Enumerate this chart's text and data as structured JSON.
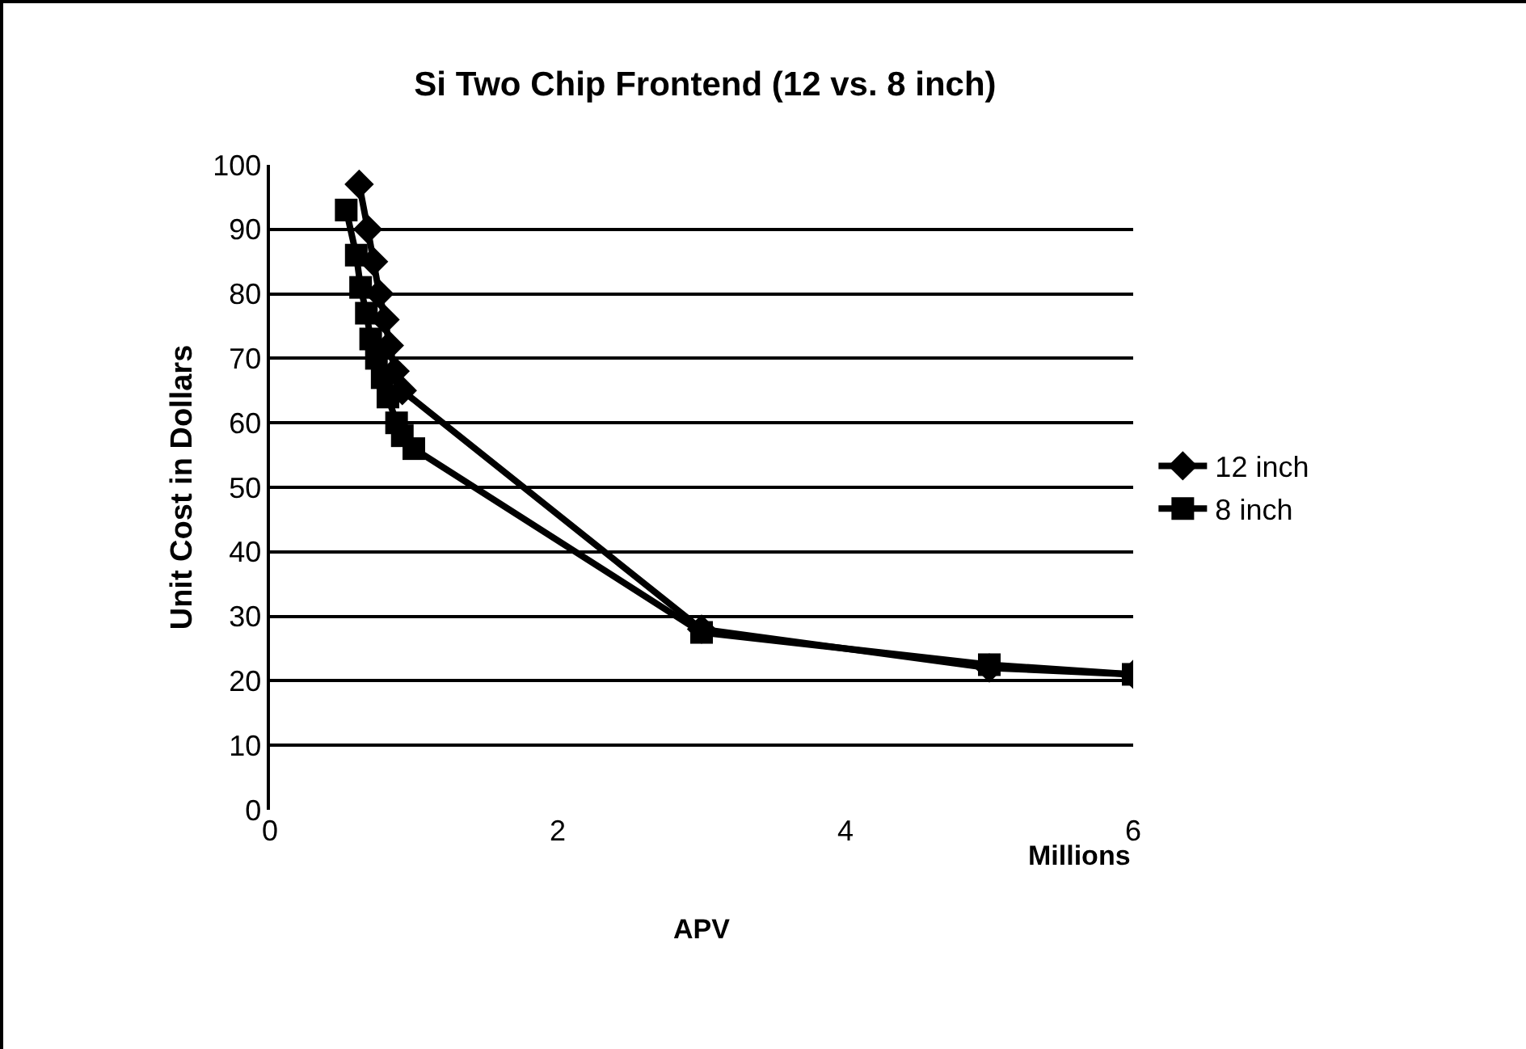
{
  "chart_data": {
    "type": "line",
    "title": "Si Two Chip Frontend (12 vs. 8 inch)",
    "xlabel": "APV",
    "ylabel": "Unit Cost in Dollars",
    "annotations": [
      "Millions"
    ],
    "series": [
      {
        "name": "12 inch",
        "color": "#000000",
        "marker": "diamond",
        "x": [
          0.62,
          0.68,
          0.72,
          0.76,
          0.8,
          0.83,
          0.87,
          0.92,
          3,
          5,
          6
        ],
        "values": [
          97,
          90,
          85,
          80,
          76,
          72,
          68,
          65,
          28,
          22,
          21
        ]
      },
      {
        "name": "8 inch",
        "color": "#000000",
        "marker": "square",
        "x": [
          0.53,
          0.6,
          0.63,
          0.67,
          0.7,
          0.74,
          0.78,
          0.82,
          0.88,
          0.92,
          1.0,
          3,
          5,
          6
        ],
        "values": [
          93,
          86,
          81,
          77,
          73,
          70,
          67,
          64,
          60,
          58,
          56,
          27.5,
          22.5,
          21
        ]
      }
    ],
    "xlim": [
      0,
      6
    ],
    "xticks": [
      0,
      2,
      4,
      6
    ],
    "ylim": [
      0,
      100
    ],
    "yticks": [
      0,
      10,
      20,
      30,
      40,
      50,
      60,
      70,
      80,
      90,
      100
    ],
    "grid": "y",
    "legend": "right",
    "line_style": "solid"
  }
}
